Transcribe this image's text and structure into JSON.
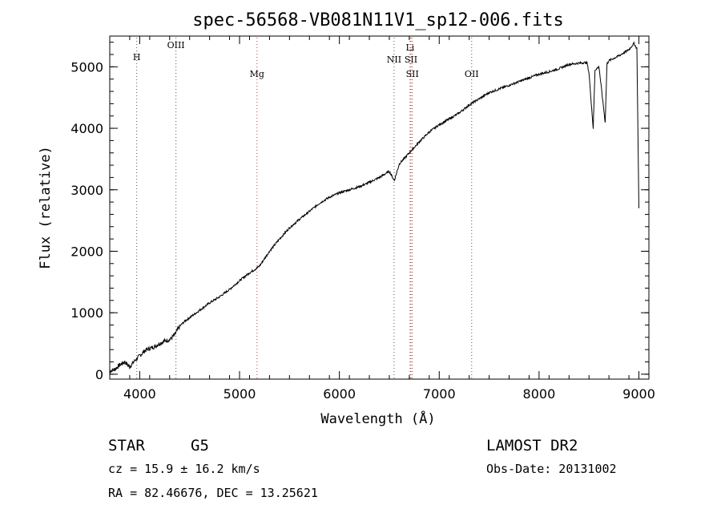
{
  "chart_data": {
    "type": "line",
    "title": "spec-56568-VB081N11V1_sp12-006.fits",
    "xlabel": "Wavelength (Å)",
    "ylabel": "Flux (relative)",
    "xlim": [
      3700,
      9100
    ],
    "ylim": [
      -80,
      5500
    ],
    "xticks": [
      4000,
      5000,
      6000,
      7000,
      8000,
      9000
    ],
    "yticks": [
      0,
      1000,
      2000,
      3000,
      4000,
      5000
    ],
    "xtick_labels": [
      "4000",
      "5000",
      "6000",
      "7000",
      "8000",
      "9000"
    ],
    "ytick_labels": [
      "0",
      "1000",
      "2000",
      "3000",
      "4000",
      "5000"
    ],
    "grid": false,
    "series": [
      {
        "x": [
          3700,
          3750,
          3800,
          3850,
          3900,
          3950,
          4000,
          4050,
          4100,
          4150,
          4200,
          4250,
          4300,
          4350,
          4400,
          4450,
          4500,
          4600,
          4700,
          4800,
          4900,
          5000,
          5100,
          5150,
          5200,
          5250,
          5300,
          5400,
          5500,
          5600,
          5700,
          5800,
          5900,
          6000,
          6100,
          6200,
          6300,
          6400,
          6500,
          6550,
          6600,
          6700,
          6800,
          6900,
          7000,
          7100,
          7200,
          7300,
          7400,
          7500,
          7600,
          7700,
          7800,
          7900,
          8000,
          8100,
          8200,
          8300,
          8400,
          8480,
          8500,
          8542,
          8560,
          8600,
          8662,
          8680,
          8700,
          8800,
          8850,
          8900,
          8950,
          8980,
          9000
        ],
        "y": [
          50,
          80,
          150,
          200,
          120,
          220,
          300,
          380,
          420,
          450,
          500,
          540,
          560,
          640,
          780,
          860,
          920,
          1040,
          1160,
          1260,
          1380,
          1520,
          1650,
          1700,
          1760,
          1880,
          2000,
          2200,
          2380,
          2520,
          2650,
          2780,
          2880,
          2950,
          3000,
          3050,
          3120,
          3200,
          3300,
          3150,
          3420,
          3600,
          3780,
          3940,
          4060,
          4150,
          4250,
          4380,
          4480,
          4580,
          4640,
          4700,
          4760,
          4820,
          4880,
          4920,
          4970,
          5040,
          5060,
          5070,
          4900,
          4000,
          4950,
          5000,
          4100,
          5050,
          5100,
          5180,
          5230,
          5280,
          5380,
          5300,
          2700
        ]
      }
    ],
    "spectral_lines": [
      {
        "label": "H",
        "x": 3970,
        "color": "#555555"
      },
      {
        "label": "OIII",
        "x": 4363,
        "color": "#555555"
      },
      {
        "label": "Mg",
        "x": 5175,
        "color": "#cc3333"
      },
      {
        "label": "NII",
        "x": 6548,
        "color": "#555555"
      },
      {
        "label": "Li",
        "x": 6708,
        "color": "#555555"
      },
      {
        "label": "SII",
        "x": 6717,
        "color": "#cc3333"
      },
      {
        "label": "SII",
        "x": 6731,
        "color": "#cc3333"
      },
      {
        "label": "OII",
        "x": 7325,
        "color": "#555555"
      }
    ]
  },
  "info": {
    "class_label": "STAR",
    "subclass": "G5",
    "survey": "LAMOST DR2",
    "cz": "cz = 15.9 ± 16.2 km/s",
    "obs_date": "Obs-Date: 20131002",
    "coords": "RA =  82.46676, DEC =  13.25621"
  }
}
